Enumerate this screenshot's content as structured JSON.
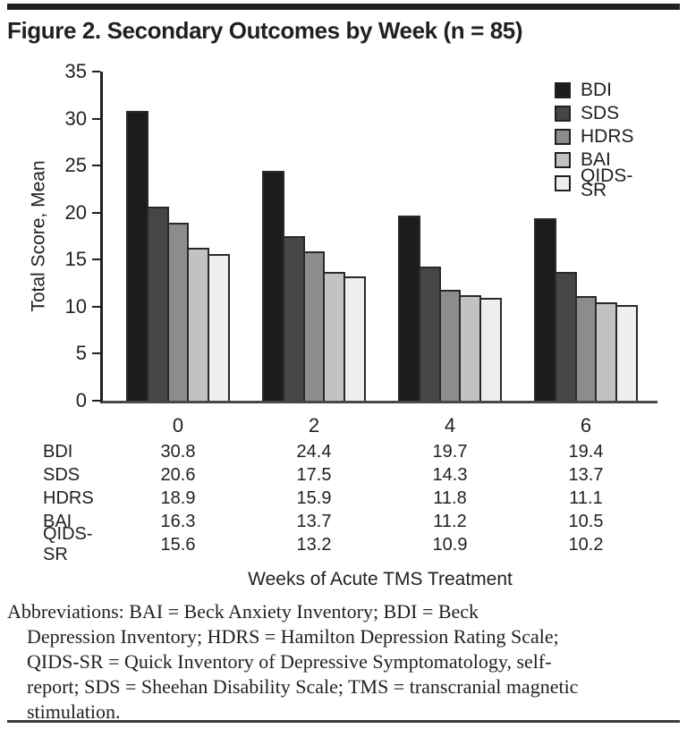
{
  "chart_data": {
    "type": "bar",
    "title": "Figure 2. Secondary Outcomes by Week (n = 85)",
    "categories": [
      "0",
      "2",
      "4",
      "6"
    ],
    "series": [
      {
        "name": "BDI",
        "color": "#1e1b1c",
        "values": [
          30.8,
          24.4,
          19.7,
          19.4
        ]
      },
      {
        "name": "SDS",
        "color": "#474546",
        "values": [
          20.6,
          17.5,
          14.3,
          13.7
        ]
      },
      {
        "name": "HDRS",
        "color": "#8d8c8c",
        "values": [
          18.9,
          15.9,
          11.8,
          11.1
        ]
      },
      {
        "name": "BAI",
        "color": "#c3c2c2",
        "values": [
          16.3,
          13.7,
          11.2,
          10.5
        ]
      },
      {
        "name": "QIDS-SR",
        "color": "#efeeee",
        "values": [
          15.6,
          13.2,
          10.9,
          10.2
        ]
      }
    ],
    "xlabel": "Weeks of Acute TMS Treatment",
    "ylabel": "Total Score, Mean",
    "ylim": [
      0,
      35
    ],
    "yticks": [
      0,
      5,
      10,
      15,
      20,
      25,
      30,
      35
    ],
    "legend_position": "top-right",
    "grid": false,
    "axis_color": "#231f20",
    "bar_border_color": "#2b2829"
  },
  "footnote_lines": [
    "Abbreviations: BAI = Beck Anxiety Inventory; BDI = Beck",
    "Depression Inventory; HDRS = Hamilton Depression Rating Scale;",
    "QIDS-SR = Quick Inventory of Depressive Symptomatology, self-",
    "report; SDS = Sheehan Disability Scale; TMS = transcranial magnetic",
    "stimulation."
  ]
}
